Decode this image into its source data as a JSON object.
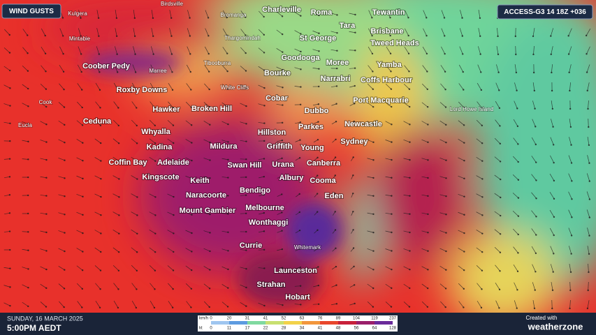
{
  "header": {
    "title": "WIND GUSTS",
    "model": "ACCESS-G3 14 18Z +036"
  },
  "places": [
    "Kulgera",
    "Birdsville",
    "Bromanga",
    "Charleville",
    "Roma",
    "Tewantin",
    "Tara",
    "Brisbane",
    "Mintabie",
    "Thargomindah",
    "St George",
    "Tweed Heads",
    "Goodooga",
    "Moree",
    "Yamba",
    "Coober Pedy",
    "Marree",
    "Tibooburra",
    "Bourke",
    "Narrabri",
    "Coffs Harbour",
    "Roxby Downs",
    "White Cliffs",
    "Cobar",
    "Port Macquarie",
    "Cook",
    "Hawker",
    "Broken Hill",
    "Dubbo",
    "Lord Howe Island",
    "Ceduna",
    "Eucla",
    "Parkes",
    "Newcastle",
    "Whyalla",
    "Hillston",
    "Sydney",
    "Kadina",
    "Mildura",
    "Griffith",
    "Young",
    "Coffin Bay",
    "Adelaide",
    "Swan Hill",
    "Urana",
    "Canberra",
    "Kingscote",
    "Albury",
    "Keith",
    "Cooma",
    "Bendigo",
    "Naracoorte",
    "Eden",
    "Mount Gambier",
    "Melbourne",
    "Wonthaggi",
    "Currie",
    "Whitemark",
    "Launceston",
    "Strahan",
    "Hobart"
  ],
  "legend": {
    "kmh_label": "km/h",
    "kt_label": "kt",
    "kmh": [
      0,
      20,
      31,
      41,
      52,
      63,
      76,
      89,
      104,
      119,
      237
    ],
    "kt": [
      0,
      11,
      17,
      22,
      28,
      34,
      41,
      48,
      56,
      64,
      128
    ]
  },
  "footer": {
    "date": "SUNDAY, 16 MARCH 2025",
    "time": "5:00PM AEDT",
    "created": "Created with",
    "brand": "weatherzone"
  }
}
